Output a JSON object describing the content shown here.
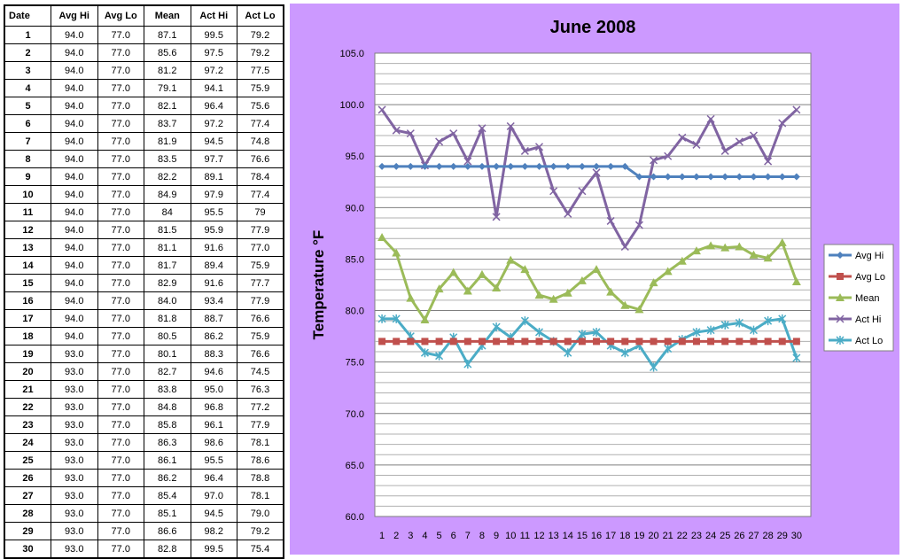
{
  "table": {
    "headers": [
      "Date",
      "Avg Hi",
      "Avg Lo",
      "Mean",
      "Act Hi",
      "Act Lo"
    ],
    "rows": [
      [
        "1",
        "94.0",
        "77.0",
        "87.1",
        "99.5",
        "79.2"
      ],
      [
        "2",
        "94.0",
        "77.0",
        "85.6",
        "97.5",
        "79.2"
      ],
      [
        "3",
        "94.0",
        "77.0",
        "81.2",
        "97.2",
        "77.5"
      ],
      [
        "4",
        "94.0",
        "77.0",
        "79.1",
        "94.1",
        "75.9"
      ],
      [
        "5",
        "94.0",
        "77.0",
        "82.1",
        "96.4",
        "75.6"
      ],
      [
        "6",
        "94.0",
        "77.0",
        "83.7",
        "97.2",
        "77.4"
      ],
      [
        "7",
        "94.0",
        "77.0",
        "81.9",
        "94.5",
        "74.8"
      ],
      [
        "8",
        "94.0",
        "77.0",
        "83.5",
        "97.7",
        "76.6"
      ],
      [
        "9",
        "94.0",
        "77.0",
        "82.2",
        "89.1",
        "78.4"
      ],
      [
        "10",
        "94.0",
        "77.0",
        "84.9",
        "97.9",
        "77.4"
      ],
      [
        "11",
        "94.0",
        "77.0",
        "84",
        "95.5",
        "79"
      ],
      [
        "12",
        "94.0",
        "77.0",
        "81.5",
        "95.9",
        "77.9"
      ],
      [
        "13",
        "94.0",
        "77.0",
        "81.1",
        "91.6",
        "77.0"
      ],
      [
        "14",
        "94.0",
        "77.0",
        "81.7",
        "89.4",
        "75.9"
      ],
      [
        "15",
        "94.0",
        "77.0",
        "82.9",
        "91.6",
        "77.7"
      ],
      [
        "16",
        "94.0",
        "77.0",
        "84.0",
        "93.4",
        "77.9"
      ],
      [
        "17",
        "94.0",
        "77.0",
        "81.8",
        "88.7",
        "76.6"
      ],
      [
        "18",
        "94.0",
        "77.0",
        "80.5",
        "86.2",
        "75.9"
      ],
      [
        "19",
        "93.0",
        "77.0",
        "80.1",
        "88.3",
        "76.6"
      ],
      [
        "20",
        "93.0",
        "77.0",
        "82.7",
        "94.6",
        "74.5"
      ],
      [
        "21",
        "93.0",
        "77.0",
        "83.8",
        "95.0",
        "76.3"
      ],
      [
        "22",
        "93.0",
        "77.0",
        "84.8",
        "96.8",
        "77.2"
      ],
      [
        "23",
        "93.0",
        "77.0",
        "85.8",
        "96.1",
        "77.9"
      ],
      [
        "24",
        "93.0",
        "77.0",
        "86.3",
        "98.6",
        "78.1"
      ],
      [
        "25",
        "93.0",
        "77.0",
        "86.1",
        "95.5",
        "78.6"
      ],
      [
        "26",
        "93.0",
        "77.0",
        "86.2",
        "96.4",
        "78.8"
      ],
      [
        "27",
        "93.0",
        "77.0",
        "85.4",
        "97.0",
        "78.1"
      ],
      [
        "28",
        "93.0",
        "77.0",
        "85.1",
        "94.5",
        "79.0"
      ],
      [
        "29",
        "93.0",
        "77.0",
        "86.6",
        "98.2",
        "79.2"
      ],
      [
        "30",
        "93.0",
        "77.0",
        "82.8",
        "99.5",
        "75.4"
      ]
    ]
  },
  "chart_data": {
    "type": "line",
    "title": "June 2008",
    "ylabel": "Temperature °F",
    "xlabel": "",
    "ylim": [
      60,
      105
    ],
    "y_ticks": [
      "60.0",
      "65.0",
      "70.0",
      "75.0",
      "80.0",
      "85.0",
      "90.0",
      "95.0",
      "100.0",
      "105.0"
    ],
    "x": [
      "1",
      "2",
      "3",
      "4",
      "5",
      "6",
      "7",
      "8",
      "9",
      "10",
      "11",
      "12",
      "13",
      "14",
      "15",
      "16",
      "17",
      "18",
      "19",
      "20",
      "21",
      "22",
      "23",
      "24",
      "25",
      "26",
      "27",
      "28",
      "29",
      "30"
    ],
    "grid": true,
    "legend_position": "right",
    "background": "#cc99ff",
    "plot_background": "#ffffff",
    "series": [
      {
        "name": "Avg Hi",
        "color": "#4f81bd",
        "marker": "diamond",
        "values": [
          94,
          94,
          94,
          94,
          94,
          94,
          94,
          94,
          94,
          94,
          94,
          94,
          94,
          94,
          94,
          94,
          94,
          94,
          93,
          93,
          93,
          93,
          93,
          93,
          93,
          93,
          93,
          93,
          93,
          93
        ]
      },
      {
        "name": "Avg Lo",
        "color": "#c0504d",
        "marker": "square",
        "values": [
          77,
          77,
          77,
          77,
          77,
          77,
          77,
          77,
          77,
          77,
          77,
          77,
          77,
          77,
          77,
          77,
          77,
          77,
          77,
          77,
          77,
          77,
          77,
          77,
          77,
          77,
          77,
          77,
          77,
          77
        ]
      },
      {
        "name": "Mean",
        "color": "#9bbb59",
        "marker": "triangle",
        "values": [
          87.1,
          85.6,
          81.2,
          79.1,
          82.1,
          83.7,
          81.9,
          83.5,
          82.2,
          84.9,
          84,
          81.5,
          81.1,
          81.7,
          82.9,
          84.0,
          81.8,
          80.5,
          80.1,
          82.7,
          83.8,
          84.8,
          85.8,
          86.3,
          86.1,
          86.2,
          85.4,
          85.1,
          86.6,
          82.8
        ]
      },
      {
        "name": "Act Hi",
        "color": "#8064a2",
        "marker": "x",
        "values": [
          99.5,
          97.5,
          97.2,
          94.1,
          96.4,
          97.2,
          94.5,
          97.7,
          89.1,
          97.9,
          95.5,
          95.9,
          91.6,
          89.4,
          91.6,
          93.4,
          88.7,
          86.2,
          88.3,
          94.6,
          95.0,
          96.8,
          96.1,
          98.6,
          95.5,
          96.4,
          97.0,
          94.5,
          98.2,
          99.5
        ]
      },
      {
        "name": "Act Lo",
        "color": "#4bacc6",
        "marker": "star",
        "values": [
          79.2,
          79.2,
          77.5,
          75.9,
          75.6,
          77.4,
          74.8,
          76.6,
          78.4,
          77.4,
          79,
          77.9,
          77.0,
          75.9,
          77.7,
          77.9,
          76.6,
          75.9,
          76.6,
          74.5,
          76.3,
          77.2,
          77.9,
          78.1,
          78.6,
          78.8,
          78.1,
          79.0,
          79.2,
          75.4
        ]
      }
    ]
  }
}
